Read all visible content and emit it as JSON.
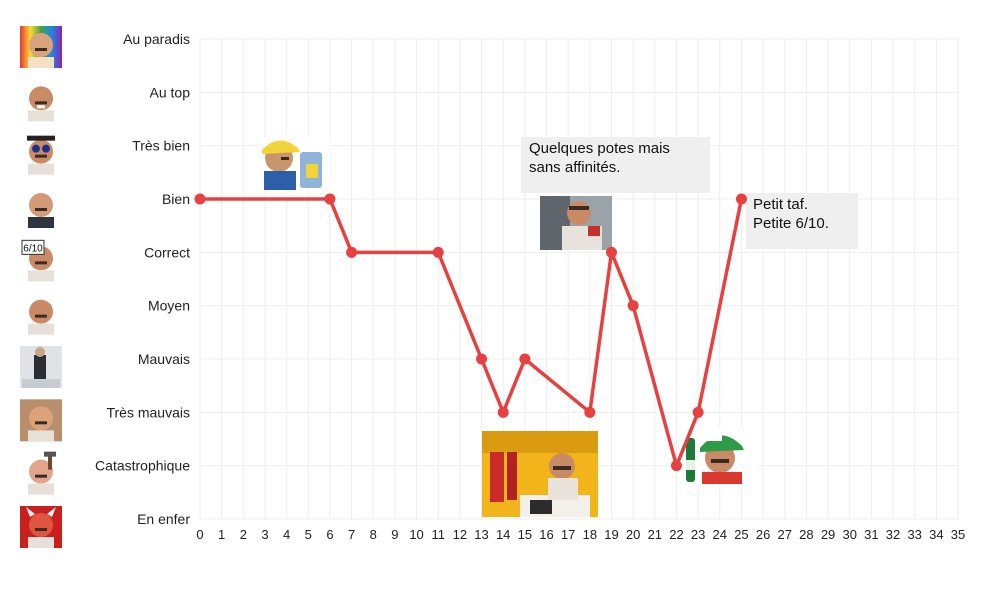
{
  "chart_data": {
    "type": "line",
    "y_categories": [
      "En enfer",
      "Catastrophique",
      "Très mauvais",
      "Mauvais",
      "Moyen",
      "Correct",
      "Bien",
      "Très bien",
      "Au top",
      "Au paradis"
    ],
    "x_ticks": [
      0,
      1,
      2,
      3,
      4,
      5,
      6,
      7,
      8,
      9,
      10,
      11,
      12,
      13,
      14,
      15,
      16,
      17,
      18,
      19,
      20,
      21,
      22,
      23,
      24,
      25,
      26,
      27,
      28,
      29,
      30,
      31,
      32,
      33,
      34,
      35
    ],
    "xlim": [
      0,
      35
    ],
    "grid": true,
    "series": [
      {
        "color": "#e84040",
        "points": [
          {
            "x": 0,
            "y": "Bien"
          },
          {
            "x": 6,
            "y": "Bien"
          },
          {
            "x": 7,
            "y": "Correct"
          },
          {
            "x": 11,
            "y": "Correct"
          },
          {
            "x": 13,
            "y": "Mauvais"
          },
          {
            "x": 14,
            "y": "Très mauvais"
          },
          {
            "x": 15,
            "y": "Mauvais"
          },
          {
            "x": 18,
            "y": "Très mauvais"
          },
          {
            "x": 19,
            "y": "Correct"
          },
          {
            "x": 20,
            "y": "Moyen"
          },
          {
            "x": 22,
            "y": "Catastrophique"
          },
          {
            "x": 23,
            "y": "Très mauvais"
          },
          {
            "x": 25,
            "y": "Bien"
          }
        ]
      }
    ],
    "annotations": [
      {
        "lines": [
          "Quelques potes mais",
          "sans affinités."
        ]
      },
      {
        "lines": [
          "Petit taf.",
          "Petite 6/10."
        ]
      }
    ]
  },
  "icons": [
    "rainbow-face-icon",
    "laughing-face-icon",
    "sunglasses-face-icon",
    "suit-face-icon",
    "rating-sign-face-icon",
    "mustache-face-icon",
    "kneeling-figure-icon",
    "old-photo-face-icon",
    "hammer-face-icon",
    "devil-face-icon"
  ],
  "photos": [
    "cap-suitcase-photo",
    "car-driver-photo",
    "fallen-man-photo",
    "cap-beer-photo"
  ]
}
